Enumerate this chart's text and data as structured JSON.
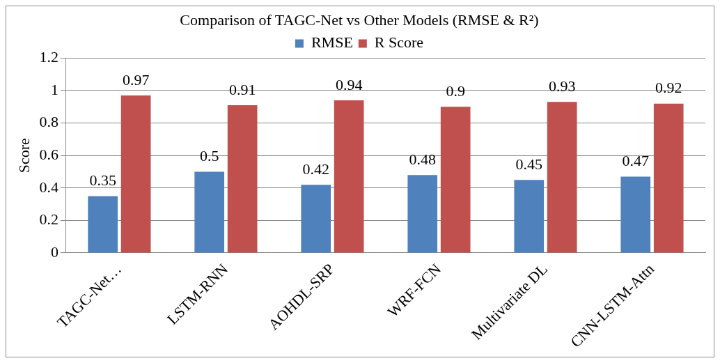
{
  "chart_data": {
    "type": "bar",
    "title": "Comparison of TAGC-Net vs Other Models (RMSE & R²)",
    "ylabel": "Score",
    "categories": [
      "TAGC-Net…",
      "LSTM-RNN",
      "AOHDL-SRP",
      "WRF-FCN",
      "Multivariate DL",
      "CNN-LSTM-Attn"
    ],
    "series": [
      {
        "name": "RMSE",
        "color": "#4f81bd",
        "values": [
          0.35,
          0.5,
          0.42,
          0.48,
          0.45,
          0.47
        ]
      },
      {
        "name": "R Score",
        "color": "#c0504d",
        "values": [
          0.97,
          0.91,
          0.94,
          0.9,
          0.93,
          0.92
        ]
      }
    ],
    "ylim": [
      0,
      1.2
    ],
    "yticks": [
      0,
      0.2,
      0.4,
      0.6,
      0.8,
      1,
      1.2
    ],
    "grid": "y",
    "legend": "top",
    "data_labels": true
  }
}
